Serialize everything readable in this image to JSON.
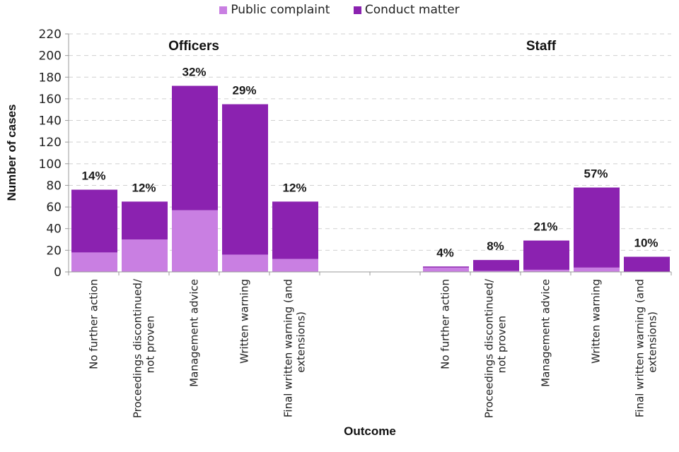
{
  "chart_data": {
    "type": "bar",
    "stacked": true,
    "title": "",
    "xlabel": "Outcome",
    "ylabel": "Number of cases",
    "ylim": [
      0,
      220
    ],
    "yticks": [
      0,
      20,
      40,
      60,
      80,
      100,
      120,
      140,
      160,
      180,
      200,
      220
    ],
    "grid": true,
    "legend_position": "top-center",
    "legend": [
      {
        "name": "Public complaint",
        "color": "#C97FE2"
      },
      {
        "name": "Conduct matter",
        "color": "#8B22B0"
      }
    ],
    "groups": [
      {
        "title": "Officers",
        "categories": [
          "No further action",
          "Proceedings discontinued/ not proven",
          "Management advice",
          "Written warning",
          "Final written warning (and extensions)"
        ],
        "series": [
          {
            "name": "Public complaint",
            "values": [
              18,
              30,
              57,
              16,
              12
            ]
          },
          {
            "name": "Conduct matter",
            "values": [
              58,
              35,
              115,
              139,
              53
            ]
          }
        ],
        "percent_labels": [
          "14%",
          "12%",
          "32%",
          "29%",
          "12%"
        ]
      },
      {
        "title": "Staff",
        "categories": [
          "No further action",
          "Proceedings discontinued/ not proven",
          "Management advice",
          "Written warning",
          "Final written warning (and extensions)"
        ],
        "series": [
          {
            "name": "Public complaint",
            "values": [
              4,
              1,
              2,
              4,
              0
            ]
          },
          {
            "name": "Conduct matter",
            "values": [
              1,
              10,
              27,
              74,
              14
            ]
          }
        ],
        "percent_labels": [
          "4%",
          "8%",
          "21%",
          "57%",
          "10%"
        ]
      }
    ],
    "category_label_lines": [
      [
        "No further action"
      ],
      [
        "Proceedings discontinued/",
        "not proven"
      ],
      [
        "Management advice"
      ],
      [
        "Written warning"
      ],
      [
        "Final written warning (and",
        "extensions)"
      ]
    ]
  }
}
